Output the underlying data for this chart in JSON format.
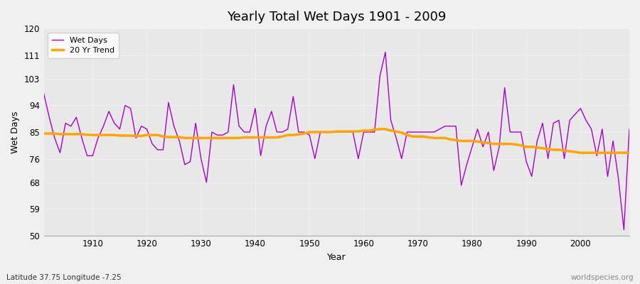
{
  "title": "Yearly Total Wet Days 1901 - 2009",
  "xlabel": "Year",
  "ylabel": "Wet Days",
  "footnote_left": "Latitude 37.75 Longitude -7.25",
  "footnote_right": "worldspecies.org",
  "ylim": [
    50,
    120
  ],
  "yticks": [
    50,
    59,
    68,
    76,
    85,
    94,
    103,
    111,
    120
  ],
  "xlim": [
    1901,
    2009
  ],
  "wet_days_color": "#AA00CC",
  "trend_color": "#FFA500",
  "fig_bg_color": "#F0F0F0",
  "plot_bg_color": "#E8E8E8",
  "years": [
    1901,
    1902,
    1903,
    1904,
    1905,
    1906,
    1907,
    1908,
    1909,
    1910,
    1911,
    1912,
    1913,
    1914,
    1915,
    1916,
    1917,
    1918,
    1919,
    1920,
    1921,
    1922,
    1923,
    1924,
    1925,
    1926,
    1927,
    1928,
    1929,
    1930,
    1931,
    1932,
    1933,
    1934,
    1935,
    1936,
    1937,
    1938,
    1939,
    1940,
    1941,
    1942,
    1943,
    1944,
    1945,
    1946,
    1947,
    1948,
    1949,
    1950,
    1951,
    1952,
    1953,
    1954,
    1955,
    1956,
    1957,
    1958,
    1959,
    1960,
    1961,
    1962,
    1963,
    1964,
    1965,
    1966,
    1967,
    1968,
    1969,
    1970,
    1971,
    1972,
    1973,
    1974,
    1975,
    1976,
    1977,
    1978,
    1979,
    1980,
    1981,
    1982,
    1983,
    1984,
    1985,
    1986,
    1987,
    1988,
    1989,
    1990,
    1991,
    1992,
    1993,
    1994,
    1995,
    1996,
    1997,
    1998,
    1999,
    2000,
    2001,
    2002,
    2003,
    2004,
    2005,
    2006,
    2007,
    2008,
    2009
  ],
  "wet_days": [
    98,
    90,
    83,
    78,
    88,
    87,
    90,
    83,
    77,
    77,
    83,
    87,
    92,
    88,
    86,
    94,
    93,
    83,
    87,
    86,
    81,
    79,
    79,
    95,
    87,
    82,
    74,
    75,
    88,
    76,
    68,
    85,
    84,
    84,
    85,
    101,
    87,
    85,
    85,
    93,
    77,
    87,
    92,
    85,
    85,
    86,
    97,
    85,
    85,
    84,
    76,
    85,
    85,
    85,
    85,
    85,
    85,
    85,
    76,
    85,
    85,
    85,
    104,
    112,
    89,
    83,
    76,
    85,
    85,
    85,
    85,
    85,
    85,
    86,
    87,
    87,
    87,
    67,
    74,
    80,
    86,
    80,
    85,
    72,
    80,
    100,
    85,
    85,
    85,
    75,
    70,
    82,
    88,
    76,
    88,
    89,
    76,
    89,
    91,
    93,
    89,
    86,
    77,
    86,
    70,
    82,
    69,
    52,
    86
  ],
  "trend": [
    84.5,
    84.5,
    84.5,
    84.3,
    84.3,
    84.3,
    84.3,
    84.3,
    84.1,
    84.0,
    84.0,
    84.0,
    84.0,
    84.0,
    83.8,
    83.8,
    83.8,
    83.7,
    83.7,
    84.0,
    84.0,
    84.0,
    83.5,
    83.3,
    83.3,
    83.3,
    83.0,
    83.0,
    83.0,
    83.0,
    83.0,
    83.0,
    83.0,
    83.0,
    83.0,
    83.0,
    83.0,
    83.2,
    83.2,
    83.2,
    83.2,
    83.2,
    83.2,
    83.2,
    83.5,
    84.0,
    84.0,
    84.2,
    84.5,
    85.0,
    85.0,
    85.0,
    85.0,
    85.0,
    85.2,
    85.2,
    85.2,
    85.2,
    85.2,
    85.5,
    85.5,
    85.8,
    86.0,
    86.0,
    85.5,
    85.2,
    84.8,
    84.0,
    83.5,
    83.5,
    83.5,
    83.2,
    83.0,
    83.0,
    83.0,
    82.5,
    82.3,
    82.0,
    82.0,
    82.0,
    81.8,
    81.5,
    81.3,
    81.0,
    81.0,
    81.0,
    81.0,
    80.8,
    80.5,
    80.0,
    80.0,
    79.8,
    79.5,
    79.3,
    79.0,
    79.0,
    78.8,
    78.5,
    78.3,
    78.0,
    78.0,
    78.0,
    78.0,
    78.0,
    78.0,
    78.0,
    78.0,
    78.0,
    78.0
  ]
}
